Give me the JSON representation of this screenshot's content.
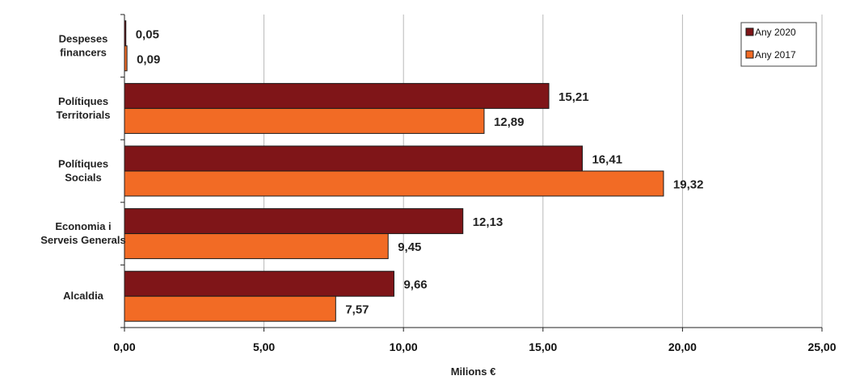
{
  "chart_data": {
    "type": "bar",
    "orientation": "horizontal",
    "categories": [
      [
        "Despeses",
        "financers"
      ],
      [
        "Polítiques",
        "Territorials"
      ],
      [
        "Polítiques",
        "Socials"
      ],
      [
        "Economia i",
        "Serveis Generals"
      ],
      [
        "Alcaldia"
      ]
    ],
    "series": [
      {
        "name": "Any 2020",
        "color": "#7f1518",
        "values": [
          0.05,
          15.21,
          16.41,
          12.13,
          9.66
        ],
        "labels": [
          "0,05",
          "15,21",
          "16,41",
          "12,13",
          "9,66"
        ]
      },
      {
        "name": "Any 2017",
        "color": "#f26b25",
        "values": [
          0.09,
          12.89,
          19.32,
          9.45,
          7.57
        ],
        "labels": [
          "0,09",
          "12,89",
          "19,32",
          "9,45",
          "7,57"
        ]
      }
    ],
    "xlabel": "Milions €",
    "ylabel": "",
    "xlim": [
      0,
      25
    ],
    "xticks": [
      0,
      5,
      10,
      15,
      20,
      25
    ],
    "xtick_labels": [
      "0,00",
      "5,00",
      "10,00",
      "15,00",
      "20,00",
      "25,00"
    ],
    "grid": "vertical",
    "legend_position": "top-right"
  }
}
